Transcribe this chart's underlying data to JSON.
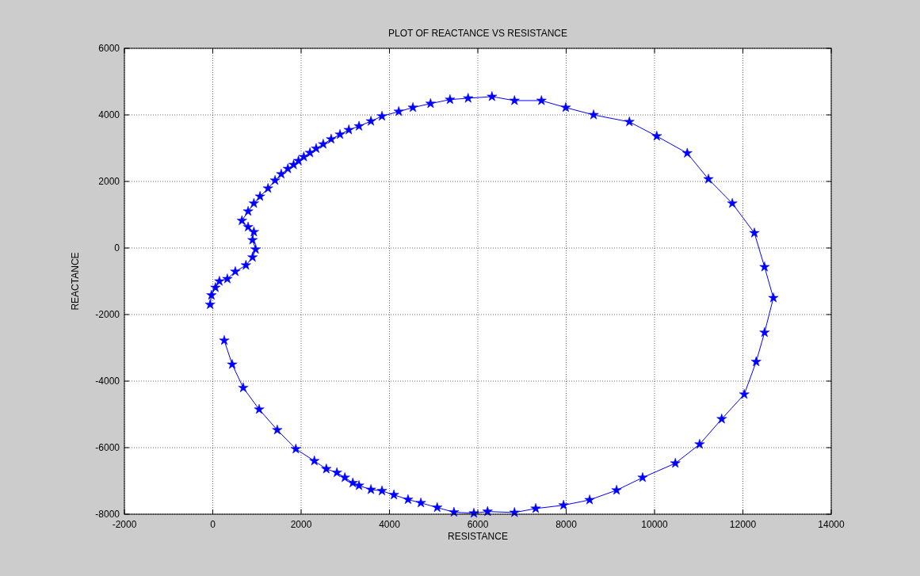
{
  "chart_data": {
    "type": "line",
    "title": "PLOT OF REACTANCE VS RESISTANCE",
    "xlabel": "RESISTANCE",
    "ylabel": "REACTANCE",
    "xlim": [
      -2000,
      14000
    ],
    "ylim": [
      -8000,
      6000
    ],
    "xticks": [
      -2000,
      0,
      2000,
      4000,
      6000,
      8000,
      10000,
      12000,
      14000
    ],
    "yticks": [
      -8000,
      -6000,
      -4000,
      -2000,
      0,
      2000,
      4000,
      6000
    ],
    "grid": true,
    "marker": "star",
    "line_style": "solid",
    "series": [
      {
        "color": "#0000ff",
        "x": [
          -60,
          -30,
          60,
          150,
          330,
          510,
          750,
          900,
          970,
          900,
          930,
          800,
          660,
          800,
          930,
          1070,
          1250,
          1410,
          1550,
          1700,
          1830,
          1940,
          2060,
          2200,
          2340,
          2500,
          2680,
          2880,
          3080,
          3310,
          3580,
          3830,
          4210,
          4530,
          4930,
          5370,
          5780,
          6320,
          6830,
          7440,
          7990,
          8620,
          9430,
          10050,
          10740,
          11220,
          11760,
          12260,
          12490,
          12690,
          12490,
          12300,
          12030,
          11520,
          11020,
          10470,
          9730,
          9140,
          8530,
          7940,
          7310,
          6830,
          6220,
          5910,
          5460,
          5080,
          4710,
          4420,
          4100,
          3830,
          3580,
          3310,
          3170,
          2990,
          2810,
          2570,
          2300,
          1880,
          1460,
          1050,
          690,
          440,
          260
        ],
        "values": [
          -1700,
          -1420,
          -1190,
          -1000,
          -930,
          -710,
          -520,
          -280,
          -40,
          240,
          480,
          630,
          820,
          1100,
          1340,
          1550,
          1790,
          2030,
          2220,
          2380,
          2500,
          2620,
          2740,
          2860,
          2990,
          3120,
          3270,
          3410,
          3550,
          3660,
          3810,
          3960,
          4100,
          4220,
          4340,
          4460,
          4500,
          4550,
          4430,
          4430,
          4220,
          4000,
          3790,
          3360,
          2850,
          2070,
          1340,
          450,
          -570,
          -1500,
          -2540,
          -3420,
          -4400,
          -5140,
          -5900,
          -6470,
          -6900,
          -7280,
          -7570,
          -7730,
          -7830,
          -7950,
          -7920,
          -7970,
          -7940,
          -7800,
          -7660,
          -7560,
          -7420,
          -7300,
          -7260,
          -7140,
          -7060,
          -6900,
          -6750,
          -6640,
          -6400,
          -6040,
          -5470,
          -4850,
          -4200,
          -3500,
          -2780
        ]
      }
    ]
  }
}
